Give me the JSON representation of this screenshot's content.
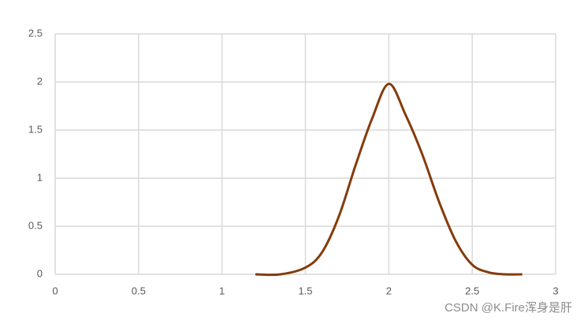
{
  "chart_data": {
    "type": "line",
    "x": [
      1.2,
      1.35,
      1.5,
      1.6,
      1.7,
      1.8,
      1.9,
      2.0,
      2.1,
      2.2,
      2.3,
      2.4,
      2.5,
      2.6,
      2.7,
      2.8
    ],
    "series": [
      {
        "color": "#843c0c",
        "values": [
          0,
          0,
          0.07,
          0.23,
          0.6,
          1.13,
          1.62,
          1.98,
          1.66,
          1.25,
          0.76,
          0.35,
          0.1,
          0.02,
          0,
          0
        ]
      }
    ],
    "xlim": [
      0,
      3
    ],
    "xticks": [
      0,
      0.5,
      1,
      1.5,
      2,
      2.5,
      3
    ],
    "ylim": [
      0,
      2.5
    ],
    "yticks": [
      0,
      0.5,
      1,
      1.5,
      2,
      2.5
    ],
    "grid": true,
    "watermark": "CSDN @K.Fire浑身是肝"
  }
}
